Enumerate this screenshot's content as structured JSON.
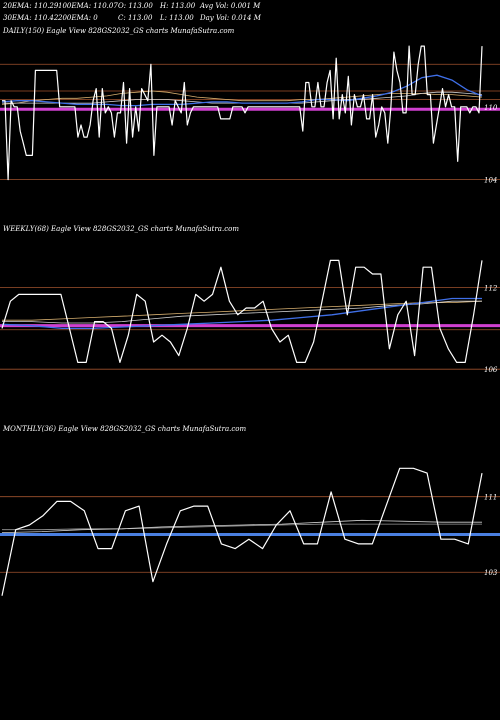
{
  "header": {
    "row1": [
      {
        "label": "20EMA:",
        "value": "110.29"
      },
      {
        "label": "100EMA:",
        "value": "110.07"
      },
      {
        "label": "O:",
        "value": "113.00"
      },
      {
        "label": "H:",
        "value": "113.00"
      },
      {
        "label": "Avg Vol:",
        "value": "0.001  M"
      }
    ],
    "row2": [
      {
        "label": "30EMA:",
        "value": "110.42"
      },
      {
        "label": "200EMA:",
        "value": "0"
      },
      {
        "label": "C:",
        "value": "113.00"
      },
      {
        "label": "L:",
        "value": "113.00"
      },
      {
        "label": "Day Vol:",
        "value": "0.014  M"
      }
    ]
  },
  "colors": {
    "background": "#000000",
    "price": "#ffffff",
    "ema_blue": "#3f6fe8",
    "ema_white": "#cfcfcf",
    "ema_tan": "#d8b070",
    "hline_orange": "#a0522d",
    "hline_magenta": "#d040d0",
    "hline_blue": "#4a7fe0"
  },
  "chart_data": [
    {
      "type": "line",
      "title": "DAILY(150) Eagle   View  828GS2032_GS charts MunafaSutra.com",
      "y_tick_labels": [
        "110",
        "104"
      ],
      "ylim": [
        101.5,
        115.5
      ],
      "reference_lines": [
        113.5,
        111.3,
        110.6,
        109.8,
        104.0
      ],
      "price": [
        110.5,
        110.5,
        104,
        110.5,
        110,
        110,
        108,
        107,
        106,
        106,
        106,
        113,
        113,
        113,
        113,
        113,
        113,
        113,
        113,
        110,
        110,
        110,
        110,
        110,
        110,
        107.5,
        108.5,
        107.5,
        107.5,
        108.5,
        110.5,
        111.5,
        107.5,
        111.5,
        109.5,
        110,
        109.5,
        107.5,
        109.5,
        109.5,
        112,
        107,
        111.5,
        107.5,
        110,
        108,
        111.5,
        111,
        110.5,
        113.5,
        106,
        110,
        110,
        110,
        110,
        110,
        108.5,
        110.5,
        110,
        109.5,
        112,
        108.5,
        109.5,
        110,
        110,
        110,
        110,
        110,
        110,
        110,
        110,
        110,
        109,
        109,
        109,
        109,
        110,
        110,
        110,
        110,
        109.5,
        110,
        110,
        110,
        110,
        110,
        110,
        110,
        110,
        110,
        110,
        110,
        110,
        110,
        110,
        110,
        110,
        110,
        110,
        108,
        112,
        112,
        110,
        110,
        112,
        110,
        110,
        112,
        113,
        109,
        114,
        109,
        111,
        109.5,
        112.5,
        108.5,
        111,
        110,
        110,
        111,
        109,
        109,
        111,
        107.5,
        108.5,
        110,
        109.5,
        107,
        110,
        114.5,
        113,
        112,
        109.5,
        109.5,
        115,
        111,
        111,
        113.5,
        115,
        115,
        111,
        111,
        107,
        108.5,
        110,
        111.5,
        110,
        111,
        110,
        110,
        105.5,
        110,
        110,
        110,
        109.5,
        110,
        110,
        109.5,
        115
      ],
      "ema_blue": [
        110.4,
        110.5,
        110.5,
        110.4,
        110.3,
        110.2,
        110.2,
        110.2,
        110.1,
        110.1,
        110.2,
        110.2,
        110.2,
        110.3,
        110.4,
        110.4,
        110.3,
        110.3,
        110.3,
        110.3,
        110.4,
        110.6,
        110.6,
        110.5,
        110.7,
        110.9,
        111.2,
        111.7,
        112.4,
        112.6,
        112.2,
        111.4,
        110.9
      ],
      "ema_white": [
        110.3,
        110.3,
        110.3,
        110.3,
        110.3,
        110.3,
        110.3,
        110.4,
        110.5,
        110.6,
        110.6,
        110.6,
        110.5,
        110.4,
        110.3,
        110.3,
        110.3,
        110.3,
        110.3,
        110.3,
        110.3,
        110.4,
        110.5,
        110.6,
        110.6,
        110.7,
        110.8,
        110.9,
        111.1,
        111.2,
        111.2,
        111.1,
        111.0
      ],
      "ema_tan": [
        110.2,
        110.3,
        110.5,
        110.6,
        110.7,
        110.7,
        110.8,
        110.9,
        111.1,
        111.2,
        111.3,
        111.2,
        111.0,
        110.8,
        110.7,
        110.6,
        110.5,
        110.5,
        110.5,
        110.5,
        110.6,
        110.6,
        110.7,
        110.8,
        110.9,
        111.0,
        111.1,
        111.1,
        111.1,
        111.0,
        111.0,
        110.9,
        110.8
      ]
    },
    {
      "type": "line",
      "title": "WEEKLY(68) Eagle   View  828GS2032_GS charts MunafaSutra.com",
      "y_tick_labels": [
        "112",
        "106"
      ],
      "ylim": [
        103,
        115.5
      ],
      "reference_lines": [
        112.0,
        109.2,
        108.9,
        106.0
      ],
      "price": [
        109,
        111,
        111.5,
        111.5,
        111.5,
        111.5,
        111.5,
        111.5,
        109,
        106.5,
        106.5,
        109.5,
        109.5,
        109,
        106.5,
        108.5,
        111.5,
        111,
        108,
        108.5,
        108,
        107,
        109,
        111.5,
        111,
        111.5,
        113.5,
        111,
        110,
        110.5,
        110.5,
        111,
        109,
        108,
        108.5,
        106.5,
        106.5,
        108,
        111,
        114,
        114,
        110,
        113.5,
        113.5,
        113,
        113,
        107.5,
        110,
        111,
        107,
        113.5,
        113.5,
        109,
        107.5,
        106.5,
        106.5,
        110,
        114
      ],
      "ema_blue": [
        109.3,
        109.2,
        109.0,
        109.0,
        109.1,
        109.2,
        109.3,
        109.4,
        109.5,
        109.6,
        109.8,
        110.0,
        110.3,
        110.6,
        110.9,
        111.2,
        111.2
      ],
      "ema_white": [
        109.5,
        109.5,
        109.4,
        109.4,
        109.5,
        109.7,
        109.9,
        110.0,
        110.1,
        110.2,
        110.3,
        110.4,
        110.5,
        110.7,
        110.8,
        111.0,
        111.0
      ],
      "ema_tan": [
        109.6,
        109.6,
        109.7,
        109.8,
        109.9,
        110.0,
        110.1,
        110.2,
        110.3,
        110.4,
        110.5,
        110.6,
        110.7,
        110.8,
        110.9,
        110.9,
        111.0
      ]
    },
    {
      "type": "line",
      "title": "MONTHLY(36) Eagle   View  828GS2032_GS charts MunafaSutra.com",
      "y_tick_labels": [
        "111",
        "103"
      ],
      "ylim": [
        99,
        117
      ],
      "reference_lines": [
        111.0,
        107.0,
        103.0
      ],
      "price": [
        100.5,
        107.5,
        108,
        109,
        110.5,
        110.5,
        109.5,
        105.5,
        105.5,
        109.5,
        110,
        102,
        106,
        109.5,
        110,
        110,
        106,
        105.5,
        106.5,
        105.5,
        108,
        109.5,
        106,
        106,
        111.5,
        106.5,
        106,
        106,
        110,
        114,
        114,
        113.5,
        106.5,
        106.5,
        106,
        113.5
      ],
      "ema_white": [
        107.2,
        107.3,
        107.5,
        107.6,
        107.8,
        107.9,
        108.0,
        108.1,
        108.3,
        108.5,
        108.4,
        108.3,
        108.3
      ],
      "ema_gray": [
        107.5,
        107.5,
        107.6,
        107.6,
        107.7,
        107.8,
        107.9,
        108.0,
        108.1,
        108.1,
        108.1,
        108.1,
        108.1
      ]
    }
  ]
}
